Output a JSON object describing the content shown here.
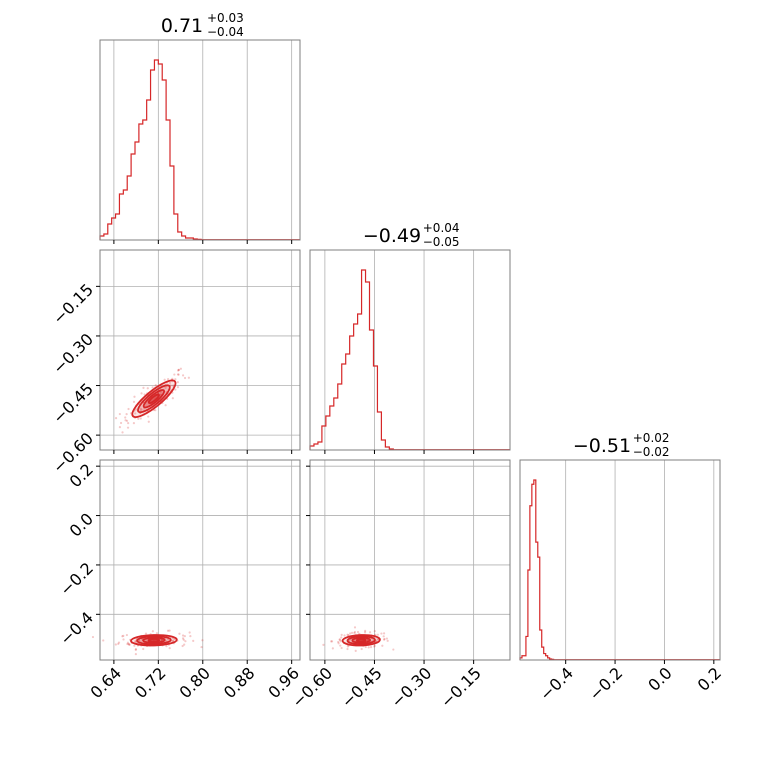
{
  "chart_data": {
    "type": "corner",
    "color": "#d62728",
    "grid": true,
    "parameters": [
      {
        "title": {
          "median": "0.71",
          "plus": "+0.03",
          "minus": "−0.04"
        },
        "range": [
          0.615,
          0.975
        ],
        "tick_values": [
          0.64,
          0.72,
          0.8,
          0.88,
          0.96
        ],
        "tick_labels": [
          "0.64",
          "0.72",
          "0.80",
          "0.88",
          "0.96"
        ]
      },
      {
        "title": {
          "median": "−0.49",
          "plus": "+0.04",
          "minus": "−0.05"
        },
        "range": [
          -0.645,
          -0.04
        ],
        "tick_values": [
          -0.6,
          -0.45,
          -0.3,
          -0.15
        ],
        "tick_labels": [
          "−0.60",
          "−0.45",
          "−0.30",
          "−0.15"
        ]
      },
      {
        "title": {
          "median": "−0.51",
          "plus": "+0.02",
          "minus": "−0.02"
        },
        "range": [
          -0.585,
          0.225
        ],
        "tick_values": [
          -0.4,
          -0.2,
          0.0,
          0.2
        ],
        "tick_labels": [
          "−0.4",
          "−0.2",
          "0.0",
          "0.2"
        ]
      }
    ],
    "histograms": [
      {
        "param": 0,
        "bin_edges": [
          0.615,
          0.622,
          0.629,
          0.636,
          0.643,
          0.65,
          0.657,
          0.664,
          0.671,
          0.678,
          0.685,
          0.692,
          0.699,
          0.706,
          0.713,
          0.72,
          0.727,
          0.734,
          0.741,
          0.748,
          0.755,
          0.762,
          0.769,
          0.776,
          0.783,
          0.79,
          0.797
        ],
        "counts": [
          2,
          3,
          8,
          11,
          13,
          23,
          25,
          32,
          43,
          49,
          58,
          60,
          70,
          85,
          90,
          88,
          80,
          60,
          37,
          13,
          4,
          2,
          1,
          1,
          0.5,
          0.3
        ]
      },
      {
        "param": 1,
        "bin_edges": [
          -0.645,
          -0.633,
          -0.621,
          -0.609,
          -0.597,
          -0.585,
          -0.573,
          -0.561,
          -0.549,
          -0.537,
          -0.525,
          -0.513,
          -0.501,
          -0.489,
          -0.477,
          -0.465,
          -0.453,
          -0.441,
          -0.429,
          -0.417,
          -0.405,
          -0.393
        ],
        "counts": [
          2,
          3,
          4,
          12,
          17,
          22,
          26,
          33,
          43,
          48,
          57,
          63,
          68,
          90,
          84,
          60,
          42,
          19,
          5,
          1.5,
          0.5
        ]
      },
      {
        "param": 2,
        "bin_edges": [
          -0.585,
          -0.577,
          -0.569,
          -0.561,
          -0.553,
          -0.545,
          -0.537,
          -0.529,
          -0.521,
          -0.513,
          -0.505,
          -0.497,
          -0.489,
          -0.481,
          -0.473,
          -0.465,
          -0.457,
          -0.449
        ],
        "counts": [
          1,
          2,
          2,
          11,
          42,
          72,
          82,
          84,
          55,
          48,
          14,
          6,
          3,
          2,
          1,
          0.5,
          0.3
        ]
      }
    ],
    "contours": [
      {
        "x_param": 0,
        "y_param": 1,
        "center": [
          0.712,
          -0.49
        ],
        "corr": 0.85,
        "spread": [
          0.033,
          0.047
        ]
      },
      {
        "x_param": 0,
        "y_param": 2,
        "center": [
          0.712,
          -0.505
        ],
        "corr": 0.1,
        "spread": [
          0.035,
          0.018
        ]
      },
      {
        "x_param": 1,
        "y_param": 2,
        "center": [
          -0.49,
          -0.505
        ],
        "corr": 0.1,
        "spread": [
          0.048,
          0.018
        ]
      }
    ]
  }
}
